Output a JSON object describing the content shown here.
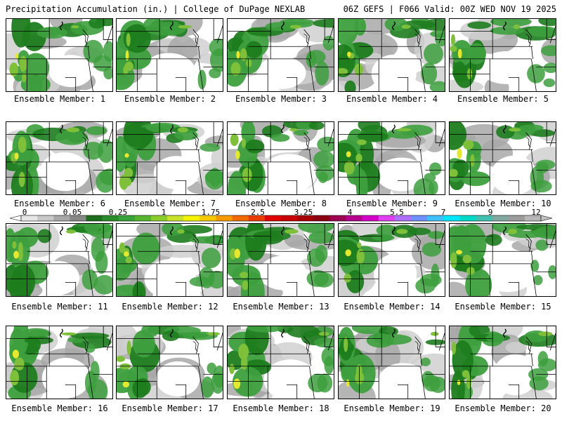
{
  "header": {
    "left": "Precipitation Accumulation (in.) | College of DuPage NEXLAB",
    "right": "06Z GEFS | F066 Valid: 00Z WED NOV 19 2025"
  },
  "panel_label_prefix": "Ensemble Member: ",
  "members": [
    "1",
    "2",
    "3",
    "4",
    "5",
    "6",
    "7",
    "8",
    "9",
    "10",
    "11",
    "12",
    "13",
    "14",
    "15",
    "16",
    "17",
    "18",
    "19",
    "20"
  ],
  "colorbar": {
    "labels": [
      "0",
      "0.05",
      "0.25",
      "1",
      "1.75",
      "2.5",
      "3.25",
      "4",
      "5.5",
      "7",
      "9",
      "12"
    ],
    "colors": [
      "#e6e6e6",
      "#c8c8c8",
      "#a8a8a8",
      "#888888",
      "#1e6e1e",
      "#2b8c2b",
      "#3aa23a",
      "#58b52f",
      "#8ccc2a",
      "#c8e12a",
      "#f3f300",
      "#f5c800",
      "#f59a00",
      "#f06a00",
      "#e83c00",
      "#e00000",
      "#c80000",
      "#a80000",
      "#8c0014",
      "#9c0050",
      "#b4008c",
      "#d400c8",
      "#e040f0",
      "#b070ff",
      "#7090ff",
      "#40c0ff",
      "#00e6ff",
      "#00d8c8",
      "#40c0b0",
      "#80a8a0",
      "#9c9c9c",
      "#b8b8b8"
    ]
  },
  "map_colors": {
    "light": "#d0d0d0",
    "mid": "#a8a8a8",
    "dark_green": "#1e7d1e",
    "green": "#3d9f3d",
    "light_green": "#7fc03a",
    "yellow": "#e4e830"
  }
}
